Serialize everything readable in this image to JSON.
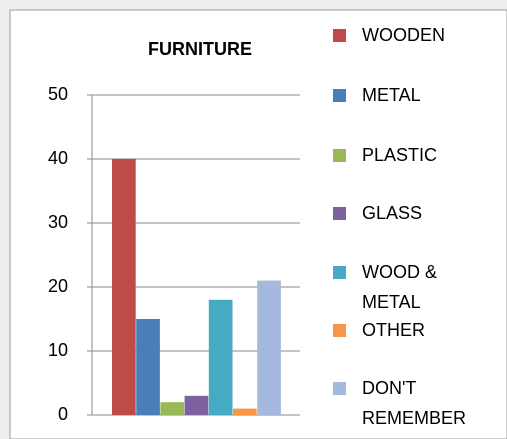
{
  "chart_data": {
    "type": "bar",
    "title": "FURNITURE",
    "categories": [
      null
    ],
    "series": [
      {
        "name": "WOODEN",
        "color": "#be4b48",
        "values": [
          40
        ]
      },
      {
        "name": "METAL",
        "color": "#4a7ebb",
        "values": [
          15
        ]
      },
      {
        "name": "PLASTIC",
        "color": "#98b954",
        "values": [
          2
        ]
      },
      {
        "name": "GLASS",
        "color": "#7d60a0",
        "values": [
          3
        ]
      },
      {
        "name": "WOOD & METAL",
        "color": "#46aac5",
        "values": [
          18
        ]
      },
      {
        "name": "OTHER",
        "color": "#f79646",
        "values": [
          1
        ]
      },
      {
        "name": "DON'T REMEMBER",
        "color": "#a5b9de",
        "values": [
          21
        ]
      }
    ],
    "ylim": [
      0,
      50
    ],
    "yticks": [
      0,
      10,
      20,
      30,
      40,
      50
    ],
    "grid": true,
    "legend": "right"
  }
}
